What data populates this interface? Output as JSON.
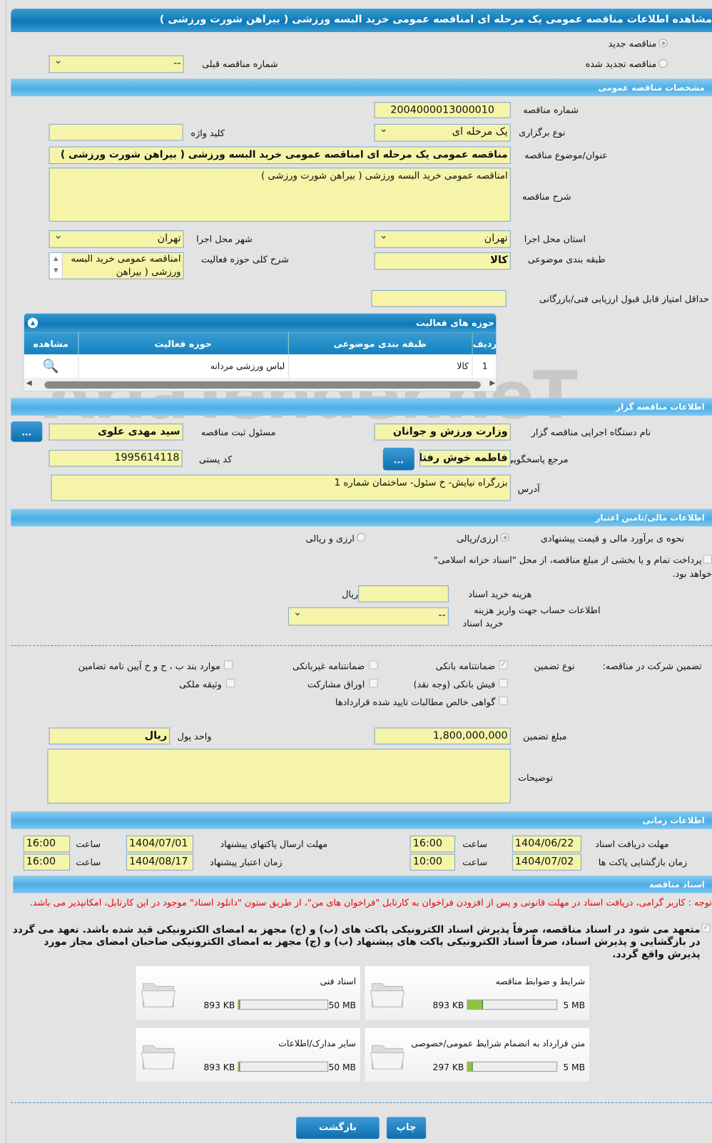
{
  "title": "مشاهده اطلاعات مناقصه عمومی یک مرحله ای امناقصه عمومی خرید البسه ورزشی ( بیراهن شورت ورزشی )",
  "top": {
    "new_label": "مناقصه جدید",
    "renewed_label": "مناقصه تجدید شده",
    "prev_label": "شماره مناقصه قبلی",
    "prev_value": "--"
  },
  "general": {
    "header": "مشخصات مناقصه عمومی",
    "number_label": "شماره مناقصه",
    "number": "2004000013000010",
    "type_label": "نوع برگزاری",
    "type": "یک مرحله ای",
    "keyword_label": "کلید واژه",
    "keyword": "",
    "subject_label": "عنوان/موضوع مناقصه",
    "subject": "مناقصه عمومی یک مرحله ای امناقصه عمومی خرید البسه ورزشی ( بیراهن شورت ورزشی )",
    "desc_label": "شرح مناقصه",
    "desc": "امناقصه عمومی خرید البسه ورزشی ( بیراهن شورت ورزشی )",
    "province_label": "استان محل اجرا",
    "province": "تهران",
    "city_label": "شهر محل اجرا",
    "city": "تهران",
    "category_label": "طبقه بندی موضوعی",
    "category": "کالا",
    "activity_desc_label": "شرح کلی حوزه فعالیت",
    "activity_desc": "امناقصه عمومی خرید البسه ورزشی ( بیراهن",
    "min_score_label": "حداقل امتیاز قابل قبول ارزیابی فنی/بازرگانی",
    "min_score": ""
  },
  "activities": {
    "title": "حوزه های فعالیت",
    "columns": [
      "ردیف",
      "طبقه بندی موضوعی",
      "حوزه فعالیت",
      "مشاهده"
    ],
    "rows": [
      {
        "idx": "1",
        "category": "کالا",
        "field": "لباس ورزشی مردانه"
      }
    ]
  },
  "watermark": "AriaTender.neT",
  "organizer": {
    "header": "اطلاعات مناقصه گزار",
    "org_label": "نام دستگاه اجرایی مناقصه گزار",
    "org": "وزارت ورزش و جوانان",
    "reg_label": "مسئول ثبت مناقصه",
    "reg": "سید مهدی علوی",
    "contact_label": "مرجع پاسخگویی",
    "contact": "فاطمه خوش رفتار",
    "postal_label": "کد پستی",
    "postal": "1995614118",
    "address_label": "آدرس",
    "address": "بزرگراه نیایش- خ سئول- ساختمان شماره 1",
    "more": "..."
  },
  "finance": {
    "header": "اطلاعات مالی/تامین اعتبار",
    "estimate_label": "نحوه ی برآورد مالی و قیمت پیشنهادی",
    "opt1": "ارزی/ریالی",
    "opt2": "ارزی و ریالی",
    "treasury": "پرداخت تمام و یا بخشی از مبلغ مناقصه، از محل \"اسناد خزانه اسلامی\"",
    "treasury2": "خواهد بود.",
    "doc_cost_label": "هزینه خرید اسناد",
    "doc_cost": "",
    "rial": "ریال",
    "account_label": "اطلاعات حساب جهت واریز هزینه",
    "account_label2": "خرید اسناد",
    "account": "--"
  },
  "guarantee": {
    "label": "تضمین شرکت در مناقصه:",
    "type_label": "نوع تضمین",
    "items": [
      {
        "label": "ضمانتنامه بانکی",
        "checked": true
      },
      {
        "label": "ضمانتنامه غیربانکی",
        "checked": false
      },
      {
        "label": "موارد بند ب ، ح و خ آیین نامه تضامین",
        "checked": false
      },
      {
        "label": "فیش بانکی (وجه نقد)",
        "checked": false
      },
      {
        "label": "اوراق مشارکت",
        "checked": false
      },
      {
        "label": "وثیقه ملکی",
        "checked": false
      },
      {
        "label": "گواهی خالص مطالبات تایید شده قراردادها",
        "checked": false
      }
    ],
    "amount_label": "مبلغ تضمین",
    "amount": "1,800,000,000",
    "currency_label": "واحد پول",
    "currency": "ریال",
    "notes_label": "توضیحات",
    "notes": ""
  },
  "timing": {
    "header": "اطلاعات زمانی",
    "hour": "ساعت",
    "doc_deadline_label": "مهلت دریافت اسناد",
    "doc_deadline": "1404/06/22",
    "doc_deadline_time": "16:00",
    "submit_label": "مهلت ارسال پاکتهای پیشنهاد",
    "submit": "1404/07/01",
    "submit_time": "16:00",
    "open_label": "زمان بازگشایی پاکت ها",
    "open": "1404/07/02",
    "open_time": "10:00",
    "valid_label": "زمان اعتبار پیشنهاد",
    "valid": "1404/08/17",
    "valid_time": "16:00"
  },
  "docs": {
    "header": "اسناد مناقصه",
    "notice": "توجه : کاربر گرامی، دریافت اسناد در مهلت قانونی و پس از افزودن فراخوان به کارتابل \"فراخوان های من\"، از طریق ستون \"دانلود اسناد\" موجود در این کارتابل، امکانپذیر می باشد.",
    "commit": "متعهد می شود در اسناد مناقصه، صرفاً پذیرش اسناد الکترونیکی پاکت های (ب) و (ج) مجهز به امضای الکترونیکی قید شده باشد. تعهد می گردد در بازگشایی و پذیرش اسناد، صرفاً اسناد الکترونیکی پاکت های پیشنهاد (ب) و (ج) مجهز به امضای الکترونیکی صاحبان امضای مجاز مورد پذیرش واقع گردد.",
    "files": [
      {
        "name": "شرایط و ضوابط مناقصه",
        "size": "893 KB",
        "max": "5 MB",
        "fill": 0.17
      },
      {
        "name": "اسناد فنی",
        "size": "893 KB",
        "max": "50 MB",
        "fill": 0.02
      },
      {
        "name": "متن قرارداد به انضمام شرایط عمومی/خصوصی",
        "size": "297 KB",
        "max": "5 MB",
        "fill": 0.06
      },
      {
        "name": "سایر مدارک/اطلاعات",
        "size": "893 KB",
        "max": "50 MB",
        "fill": 0.02
      }
    ]
  },
  "buttons": {
    "back": "بازگشت",
    "print": "چاپ"
  }
}
